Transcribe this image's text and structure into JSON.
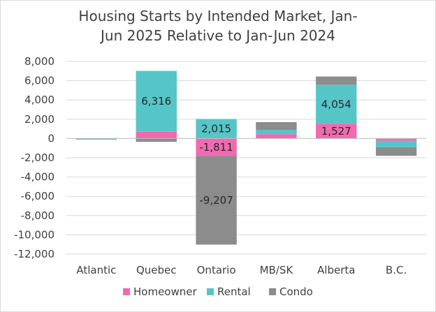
{
  "chart_data": {
    "type": "bar",
    "stacked": true,
    "title_line1": "Housing Starts by Intended Market, Jan-",
    "title_line2": "Jun 2025 Relative to Jan-Jun 2024",
    "xlabel": "",
    "ylabel": "",
    "categories": [
      "Atlantic",
      "Quebec",
      "Ontario",
      "MB/SK",
      "Alberta",
      "B.C."
    ],
    "series": [
      {
        "name": "Homeowner",
        "color": "#f06ab0",
        "values": [
          -20,
          700,
          -1811,
          450,
          1527,
          -250
        ]
      },
      {
        "name": "Rental",
        "color": "#56c5c8",
        "values": [
          -100,
          6316,
          2015,
          450,
          4054,
          -650
        ]
      },
      {
        "name": "Condo",
        "color": "#8c8c8c",
        "values": [
          0,
          -350,
          -9207,
          800,
          850,
          -900
        ]
      }
    ],
    "data_labels": [
      {
        "category": "Quebec",
        "series": "Rental",
        "text": "6,316"
      },
      {
        "category": "Ontario",
        "series": "Rental",
        "text": "2,015"
      },
      {
        "category": "Ontario",
        "series": "Homeowner",
        "text": "-1,811"
      },
      {
        "category": "Ontario",
        "series": "Condo",
        "text": "-9,207"
      },
      {
        "category": "Alberta",
        "series": "Rental",
        "text": "4,054"
      },
      {
        "category": "Alberta",
        "series": "Homeowner",
        "text": "1,527"
      }
    ],
    "ylim": [
      -12000,
      8000
    ],
    "yticks": [
      8000,
      6000,
      4000,
      2000,
      0,
      -2000,
      -4000,
      -6000,
      -8000,
      -10000,
      -12000
    ],
    "ytick_labels": [
      "8,000",
      "6,000",
      "4,000",
      "2,000",
      "0",
      "-2,000",
      "-4,000",
      "-6,000",
      "-8,000",
      "-10,000",
      "-12,000"
    ],
    "grid": true,
    "legend_position": "bottom"
  }
}
